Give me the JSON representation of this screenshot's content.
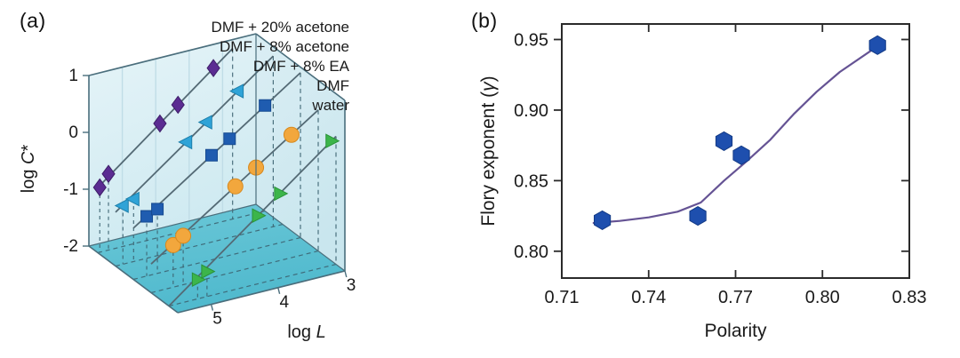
{
  "figure": {
    "panel_a_label": "(a)",
    "panel_b_label": "(b)",
    "background": "#ffffff",
    "text_color": "#1a1a1a"
  },
  "chart_data": [
    {
      "id": "a",
      "type": "line3d",
      "description": "log C* versus log L scaling lines for five solvents, drawn in a 3D box",
      "xlabel": {
        "pre": "log ",
        "it": "L",
        "post": ""
      },
      "ylabel": {
        "pre": "log ",
        "it": "C",
        "post": "*"
      },
      "xlim": [
        5.5,
        3.0
      ],
      "zlim": [
        -2,
        1
      ],
      "x_tick_vals": [
        5,
        4,
        3
      ],
      "x_tick_labels": [
        "5",
        "4",
        "3"
      ],
      "z_tick_vals": [
        1,
        0,
        -1,
        -2
      ],
      "z_tick_labels": [
        "1",
        "0",
        "-1",
        "-2"
      ],
      "grid_logL_vals": [
        5.0,
        4.5,
        4.0,
        3.5
      ],
      "colors": {
        "back_wall_top": "#e6f4f8",
        "back_wall_bottom": "#cfeaf1",
        "right_wall_top": "#dbeef4",
        "right_wall_bottom": "#c9e6ee",
        "floor_back": "#6cc8d8",
        "floor_front": "#4fb9cd",
        "wall_grid": "#c0dde7",
        "box_edge": "#4a6e7c",
        "series_line": "#546a75",
        "dash_line": "#3d6472",
        "text": "#1a1a1a"
      },
      "series": [
        {
          "name": "DMF + 20% acetone",
          "marker": "diamond",
          "color": "#5b2c92",
          "edge": "#3e1e69",
          "depth": 0.9,
          "points": [
            [
              5.47,
              -0.86
            ],
            [
              5.34,
              -0.66
            ],
            [
              4.57,
              0.0
            ],
            [
              4.3,
              0.25
            ],
            [
              3.77,
              0.74
            ]
          ],
          "line": [
            [
              5.5,
              -0.856
            ],
            [
              3.483,
              1.0
            ]
          ]
        },
        {
          "name": "DMF + 8% acetone",
          "marker": "triangle-left",
          "color": "#2fa3d7",
          "edge": "#1c7fab",
          "depth": 0.7,
          "points": [
            [
              5.39,
              -0.97
            ],
            [
              5.23,
              -0.9
            ],
            [
              4.44,
              -0.13
            ],
            [
              4.14,
              0.13
            ],
            [
              3.67,
              0.54
            ]
          ],
          "line": [
            [
              5.5,
              -1.052
            ],
            [
              3.141,
              1.0
            ]
          ]
        },
        {
          "name": "DMF + 8% EA",
          "marker": "square",
          "color": "#1f5cb0",
          "edge": "#164a90",
          "depth": 0.5,
          "points": [
            [
              5.3,
              -0.95
            ],
            [
              5.14,
              -0.87
            ],
            [
              4.33,
              -0.16
            ],
            [
              4.06,
              0.05
            ],
            [
              3.53,
              0.48
            ]
          ],
          "line": [
            [
              5.5,
              -1.1
            ],
            [
              3.0,
              0.9
            ]
          ]
        },
        {
          "name": "DMF",
          "marker": "circle",
          "color": "#f2a73d",
          "edge": "#d7891e",
          "depth": 0.3,
          "points": [
            [
              5.17,
              -1.26
            ],
            [
              5.02,
              -1.14
            ],
            [
              4.24,
              -0.5
            ],
            [
              3.93,
              -0.26
            ],
            [
              3.4,
              0.16
            ]
          ],
          "line": [
            [
              5.5,
              -1.495
            ],
            [
              3.0,
              0.48
            ]
          ]
        },
        {
          "name": "water",
          "marker": "triangle-right",
          "color": "#3cb54a",
          "edge": "#2a9338",
          "depth": 0.1,
          "points": [
            [
              5.07,
              -1.66
            ],
            [
              4.93,
              -1.56
            ],
            [
              4.17,
              -0.8
            ],
            [
              3.84,
              -0.51
            ],
            [
              3.07,
              0.19
            ]
          ],
          "line": [
            [
              5.5,
              -2.0
            ],
            [
              3.0,
              0.25
            ]
          ]
        }
      ]
    },
    {
      "id": "b",
      "type": "scatter",
      "description": "Flory exponent versus solvent polarity with smooth fit curve",
      "xlabel": {
        "pre": "Polarity",
        "it": "",
        "post": ""
      },
      "ylabel": {
        "pre": "Flory exponent (",
        "it": "γ",
        "post": ")"
      },
      "xlim": [
        0.71,
        0.83
      ],
      "ylim": [
        0.781,
        0.961
      ],
      "x_tick_vals": [
        0.71,
        0.74,
        0.77,
        0.8,
        0.83
      ],
      "x_tick_labels": [
        "0.71",
        "0.74",
        "0.77",
        "0.80",
        "0.83"
      ],
      "y_tick_vals": [
        0.8,
        0.85,
        0.9,
        0.95
      ],
      "y_tick_labels": [
        "0.80",
        "0.85",
        "0.90",
        "0.95"
      ],
      "marker": "hexagon",
      "marker_color": "#1e4fae",
      "marker_edge": "#133a85",
      "curve_color": "#655394",
      "frame_color": "#2a2a2a",
      "points": [
        [
          0.724,
          0.822
        ],
        [
          0.757,
          0.825
        ],
        [
          0.766,
          0.878
        ],
        [
          0.772,
          0.868
        ],
        [
          0.819,
          0.946
        ]
      ],
      "curve": [
        [
          0.721,
          0.82
        ],
        [
          0.73,
          0.8215
        ],
        [
          0.74,
          0.824
        ],
        [
          0.75,
          0.828
        ],
        [
          0.758,
          0.8345
        ],
        [
          0.766,
          0.85
        ],
        [
          0.774,
          0.864
        ],
        [
          0.782,
          0.879
        ],
        [
          0.79,
          0.897
        ],
        [
          0.798,
          0.913
        ],
        [
          0.806,
          0.927
        ],
        [
          0.8185,
          0.9445
        ]
      ]
    }
  ]
}
